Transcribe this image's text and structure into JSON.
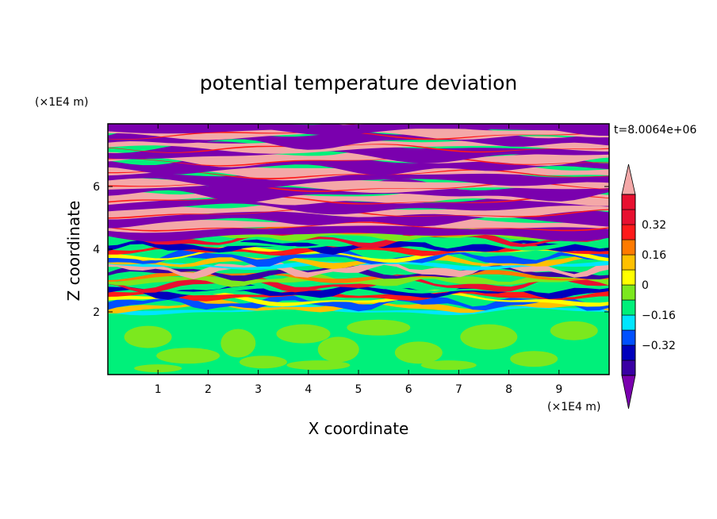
{
  "chart_data": {
    "type": "heatmap",
    "title": "potential temperature deviation",
    "xlabel": "X coordinate",
    "ylabel": "Z coordinate",
    "x_unit": "(×1E4 m)",
    "y_unit": "(×1E4 m)",
    "time_label": "t=8.0064e+06",
    "xlim": [
      0,
      10
    ],
    "ylim": [
      0,
      8
    ],
    "x_ticks": [
      "1",
      "2",
      "3",
      "4",
      "5",
      "6",
      "7",
      "8",
      "9"
    ],
    "y_ticks": [
      "2",
      "4",
      "6"
    ],
    "colorbar": {
      "levels": [
        -0.48,
        -0.4,
        -0.32,
        -0.24,
        -0.16,
        -0.08,
        0,
        0.08,
        0.16,
        0.24,
        0.32,
        0.4,
        0.48
      ],
      "colors": [
        "#7a00ae",
        "#3a00a4",
        "#0000bc",
        "#0050ff",
        "#00e6ff",
        "#00f07a",
        "#7ce81e",
        "#ffff00",
        "#ffc000",
        "#ff7a00",
        "#ff1a1a",
        "#e81030",
        "#f4a8a8"
      ],
      "labels": [
        "0.32",
        "0.16",
        "0",
        "-0.16",
        "-0.32"
      ],
      "label_values": [
        0.32,
        0.16,
        0,
        -0.16,
        -0.32
      ]
    },
    "field_summary": {
      "z_0_to_2": "mostly 0 to -0.08 with patches of 0 to 0.08 (green)",
      "z_2_to_4.5": "mixed turbulent layers spanning full range",
      "z_4.5_to_8": "alternating horizontal bands of about -0.48 (purple) and 0.48 (pink)"
    }
  }
}
